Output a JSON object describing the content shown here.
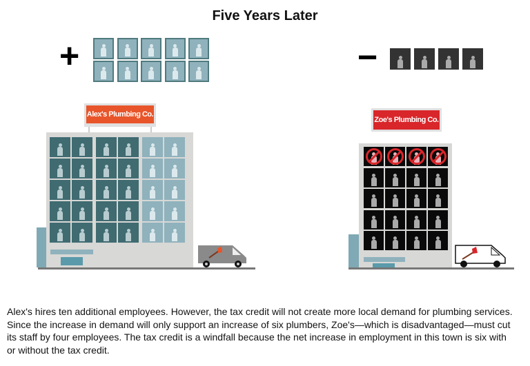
{
  "title": "Five Years Later",
  "hires": {
    "symbol": "+",
    "count": 10
  },
  "cuts": {
    "symbol": "−",
    "count": 4
  },
  "alex": {
    "sign": "Alex's Plumbing Co.",
    "rows": 5,
    "columns": 6,
    "existing_columns": 4,
    "new_columns": 2,
    "sign_color": "#e8552a"
  },
  "zoe": {
    "sign": "Zoe's Plumbing Co.",
    "rows": 5,
    "columns": 4,
    "cut_rows": 1,
    "sign_color": "#d8262a"
  },
  "colors": {
    "existing": "#3f6b71",
    "new": "#8fb2bd",
    "zoe_window": "#0a0a0a",
    "building": "#d8d8d6"
  },
  "caption": "Alex's hires ten additional employees. However, the tax credit will not create more local demand for plumbing services. Since the increase in demand will only support an increase of six plumbers, Zoe's—which is disadvantaged—must cut its staff by four employees. The tax credit is a windfall because the net increase in employment in this town is six with or without the tax credit."
}
